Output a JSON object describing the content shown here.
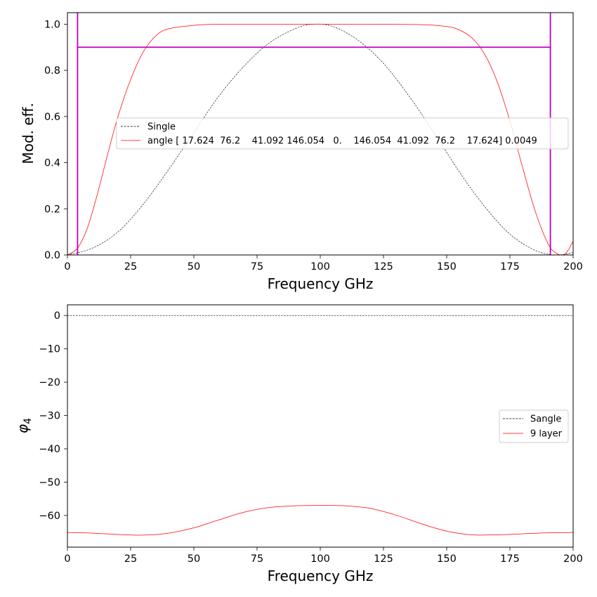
{
  "chart_data": [
    {
      "type": "line",
      "xlabel": "Frequency GHz",
      "ylabel": "Mod. eff.",
      "xlim": [
        0,
        200
      ],
      "ylim": [
        0,
        1.05
      ],
      "xticks": [
        "0",
        "25",
        "50",
        "75",
        "100",
        "125",
        "150",
        "175",
        "200"
      ],
      "yticks": [
        "0.0",
        "0.2",
        "0.4",
        "0.6",
        "0.8",
        "1.0"
      ],
      "grid": false,
      "legend_position": "center-right",
      "series": [
        {
          "name": "Single",
          "color": "#000000",
          "style": "dashed",
          "x": [
            0,
            10,
            20,
            30,
            40,
            50,
            60,
            70,
            80,
            90,
            97,
            105,
            115,
            125,
            135,
            145,
            155,
            165,
            175,
            185,
            193,
            200
          ],
          "y": [
            0.0,
            0.03,
            0.1,
            0.22,
            0.37,
            0.53,
            0.69,
            0.82,
            0.92,
            0.98,
            1.0,
            0.99,
            0.93,
            0.83,
            0.69,
            0.53,
            0.36,
            0.21,
            0.09,
            0.02,
            0.0,
            0.01
          ]
        },
        {
          "name": "angle [ 17.624  76.2    41.092 146.054   0.    146.054  41.092  76.2    17.624] 0.0049",
          "color": "#ff0000",
          "style": "solid",
          "x": [
            0,
            4,
            8,
            12,
            16,
            20,
            25,
            30,
            35,
            40,
            50,
            60,
            80,
            100,
            120,
            140,
            150,
            155,
            160,
            165,
            170,
            175,
            180,
            185,
            190,
            193,
            196,
            198,
            200
          ],
          "y": [
            0.0,
            0.03,
            0.12,
            0.27,
            0.44,
            0.6,
            0.76,
            0.88,
            0.95,
            0.98,
            0.995,
            1.0,
            1.0,
            1.0,
            1.0,
            0.998,
            0.99,
            0.975,
            0.94,
            0.87,
            0.75,
            0.58,
            0.38,
            0.19,
            0.05,
            0.01,
            0.0,
            0.02,
            0.06
          ]
        }
      ],
      "reference_lines": {
        "color": "#c000c0",
        "vertical_x": [
          4,
          191
        ],
        "horizontal_y": 0.9,
        "horizontal_x_range": [
          4,
          191
        ]
      }
    },
    {
      "type": "line",
      "xlabel": "Frequency GHz",
      "ylabel": "φ4",
      "ylabel_symbol": "φ",
      "ylabel_subscript": "4",
      "xlim": [
        0,
        200
      ],
      "ylim": [
        -69.5,
        3.2
      ],
      "xticks": [
        "0",
        "25",
        "50",
        "75",
        "100",
        "125",
        "150",
        "175",
        "200"
      ],
      "yticks": [
        "0",
        "−10",
        "−20",
        "−30",
        "−40",
        "−50",
        "−60"
      ],
      "ytick_values": [
        0,
        -10,
        -20,
        -30,
        -40,
        -50,
        -60
      ],
      "grid": false,
      "legend_position": "center-right",
      "series": [
        {
          "name": "Sangle",
          "color": "#000000",
          "style": "dashed",
          "x": [
            0,
            200
          ],
          "y": [
            0,
            0
          ]
        },
        {
          "name": "9 layer",
          "color": "#ff0000",
          "style": "solid",
          "x": [
            0,
            10,
            20,
            30,
            40,
            50,
            60,
            70,
            80,
            90,
            100,
            110,
            120,
            130,
            140,
            150,
            160,
            170,
            180,
            190,
            200
          ],
          "y": [
            -65.1,
            -65.3,
            -65.7,
            -65.9,
            -65.3,
            -63.7,
            -61.3,
            -59.0,
            -57.6,
            -57.1,
            -57.0,
            -57.1,
            -57.9,
            -59.9,
            -62.5,
            -64.7,
            -65.8,
            -65.8,
            -65.5,
            -65.2,
            -65.1
          ]
        }
      ]
    }
  ]
}
